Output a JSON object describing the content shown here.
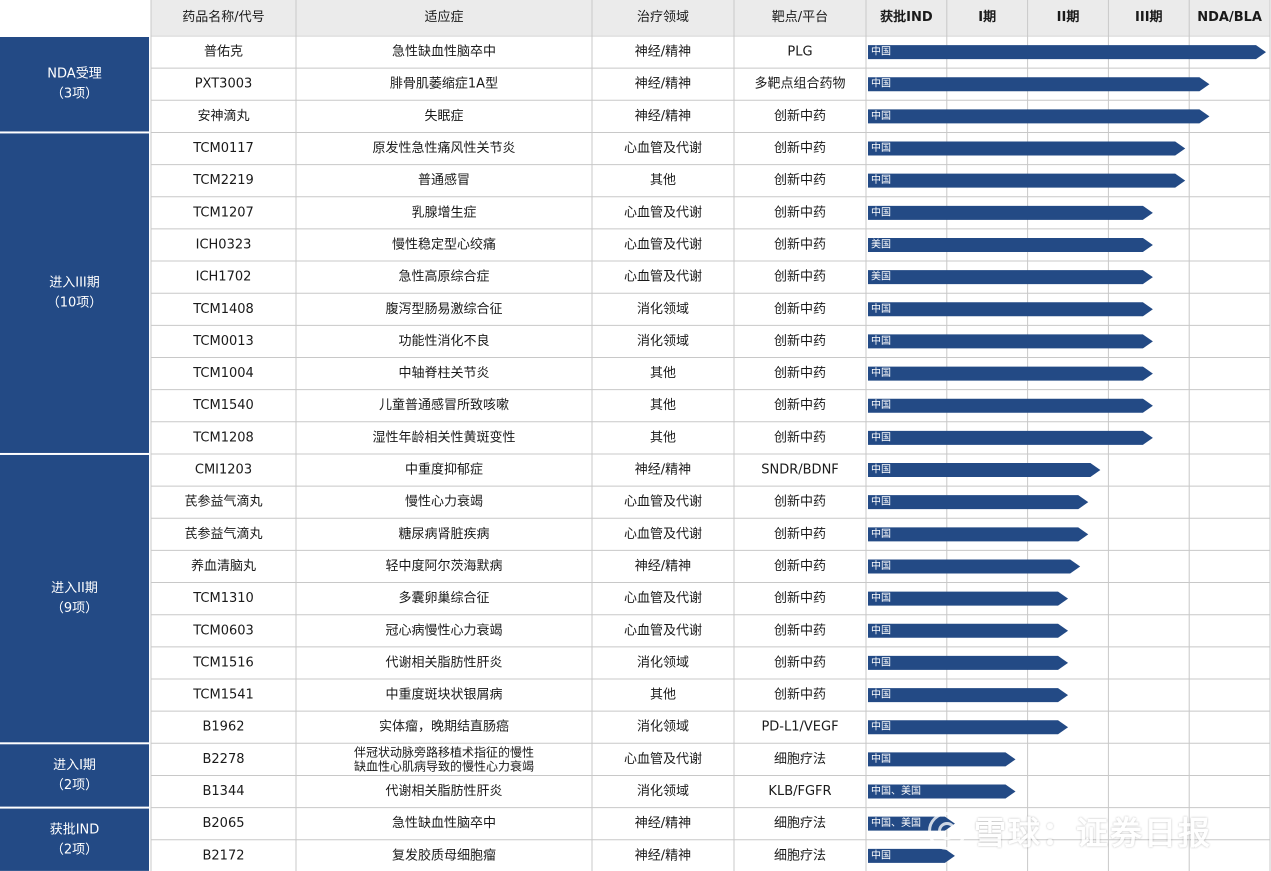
{
  "chart_data": {
    "type": "table",
    "headers": [
      "药品名称/代号",
      "适应症",
      "治疗领域",
      "靶点/平台"
    ],
    "phases": [
      "获批IND",
      "I期",
      "II期",
      "III期",
      "NDA/BLA"
    ],
    "groups": [
      {
        "label": "NDA受理",
        "count_label": "（3项）",
        "rows": 3
      },
      {
        "label": "进入III期",
        "count_label": "（10项）",
        "rows": 10
      },
      {
        "label": "进入II期",
        "count_label": "（9项）",
        "rows": 9
      },
      {
        "label": "进入I期",
        "count_label": "（2项）",
        "rows": 2
      },
      {
        "label": "获批IND",
        "count_label": "（2项）",
        "rows": 2
      }
    ],
    "rows": [
      {
        "name": "普佑克",
        "indication": [
          "急性缺血性脑卒中"
        ],
        "area": "神经/精神",
        "target": "PLG",
        "region": "中国",
        "progress": 5.0
      },
      {
        "name": "PXT3003",
        "indication": [
          "腓骨肌萎缩症1A型"
        ],
        "area": "神经/精神",
        "target": "多靶点组合药物",
        "region": "中国",
        "progress": 4.3
      },
      {
        "name": "安神滴丸",
        "indication": [
          "失眠症"
        ],
        "area": "神经/精神",
        "target": "创新中药",
        "region": "中国",
        "progress": 4.3
      },
      {
        "name": "TCM0117",
        "indication": [
          "原发性急性痛风性关节炎"
        ],
        "area": "心血管及代谢",
        "target": "创新中药",
        "region": "中国",
        "progress": 4.0
      },
      {
        "name": "TCM2219",
        "indication": [
          "普通感冒"
        ],
        "area": "其他",
        "target": "创新中药",
        "region": "中国",
        "progress": 4.0
      },
      {
        "name": "TCM1207",
        "indication": [
          "乳腺增生症"
        ],
        "area": "心血管及代谢",
        "target": "创新中药",
        "region": "中国",
        "progress": 3.6
      },
      {
        "name": "ICH0323",
        "indication": [
          "慢性稳定型心绞痛"
        ],
        "area": "心血管及代谢",
        "target": "创新中药",
        "region": "美国",
        "progress": 3.6
      },
      {
        "name": "ICH1702",
        "indication": [
          "急性高原综合症"
        ],
        "area": "心血管及代谢",
        "target": "创新中药",
        "region": "美国",
        "progress": 3.6
      },
      {
        "name": "TCM1408",
        "indication": [
          "腹泻型肠易激综合征"
        ],
        "area": "消化领域",
        "target": "创新中药",
        "region": "中国",
        "progress": 3.6
      },
      {
        "name": "TCM0013",
        "indication": [
          "功能性消化不良"
        ],
        "area": "消化领域",
        "target": "创新中药",
        "region": "中国",
        "progress": 3.6
      },
      {
        "name": "TCM1004",
        "indication": [
          "中轴脊柱关节炎"
        ],
        "area": "其他",
        "target": "创新中药",
        "region": "中国",
        "progress": 3.6
      },
      {
        "name": "TCM1540",
        "indication": [
          "儿童普通感冒所致咳嗽"
        ],
        "area": "其他",
        "target": "创新中药",
        "region": "中国",
        "progress": 3.6
      },
      {
        "name": "TCM1208",
        "indication": [
          "湿性年龄相关性黄斑变性"
        ],
        "area": "其他",
        "target": "创新中药",
        "region": "中国",
        "progress": 3.6
      },
      {
        "name": "CMI1203",
        "indication": [
          "中重度抑郁症"
        ],
        "area": "神经/精神",
        "target": "SNDR/BDNF",
        "region": "中国",
        "progress": 2.95
      },
      {
        "name": "芪参益气滴丸",
        "indication": [
          "慢性心力衰竭"
        ],
        "area": "心血管及代谢",
        "target": "创新中药",
        "region": "中国",
        "progress": 2.8
      },
      {
        "name": "芪参益气滴丸",
        "indication": [
          "糖尿病肾脏疾病"
        ],
        "area": "心血管及代谢",
        "target": "创新中药",
        "region": "中国",
        "progress": 2.8
      },
      {
        "name": "养血清脑丸",
        "indication": [
          "轻中度阿尔茨海默病"
        ],
        "area": "神经/精神",
        "target": "创新中药",
        "region": "中国",
        "progress": 2.7
      },
      {
        "name": "TCM1310",
        "indication": [
          "多囊卵巢综合征"
        ],
        "area": "心血管及代谢",
        "target": "创新中药",
        "region": "中国",
        "progress": 2.55
      },
      {
        "name": "TCM0603",
        "indication": [
          "冠心病慢性心力衰竭"
        ],
        "area": "心血管及代谢",
        "target": "创新中药",
        "region": "中国",
        "progress": 2.55
      },
      {
        "name": "TCM1516",
        "indication": [
          "代谢相关脂肪性肝炎"
        ],
        "area": "消化领域",
        "target": "创新中药",
        "region": "中国",
        "progress": 2.55
      },
      {
        "name": "TCM1541",
        "indication": [
          "中重度斑块状银屑病"
        ],
        "area": "其他",
        "target": "创新中药",
        "region": "中国",
        "progress": 2.55
      },
      {
        "name": "B1962",
        "indication": [
          "实体瘤，晚期结直肠癌"
        ],
        "area": "消化领域",
        "target": "PD-L1/VEGF",
        "region": "中国",
        "progress": 2.55
      },
      {
        "name": "B2278",
        "indication": [
          "伴冠状动脉旁路移植术指征的慢性",
          "缺血性心肌病导致的慢性心力衰竭"
        ],
        "area": "心血管及代谢",
        "target": "细胞疗法",
        "region": "中国",
        "progress": 1.9
      },
      {
        "name": "B1344",
        "indication": [
          "代谢相关脂肪性肝炎"
        ],
        "area": "消化领域",
        "target": "KLB/FGFR",
        "region": "中国、美国",
        "progress": 1.9
      },
      {
        "name": "B2065",
        "indication": [
          "急性缺血性脑卒中"
        ],
        "area": "神经/精神",
        "target": "细胞疗法",
        "region": "中国、美国",
        "progress": 1.15
      },
      {
        "name": "B2172",
        "indication": [
          "复发胶质母细胞瘤"
        ],
        "area": "神经/精神",
        "target": "细胞疗法",
        "region": "中国",
        "progress": 1.15
      }
    ],
    "colors": {
      "group_fill": "#234a85",
      "bar_fill": "#234a85",
      "header_fill": "#ebebeb",
      "grid": "#c8c8c8"
    }
  },
  "watermark": {
    "icon": "snowball-logo-icon",
    "text": "雪球：证券日报"
  }
}
